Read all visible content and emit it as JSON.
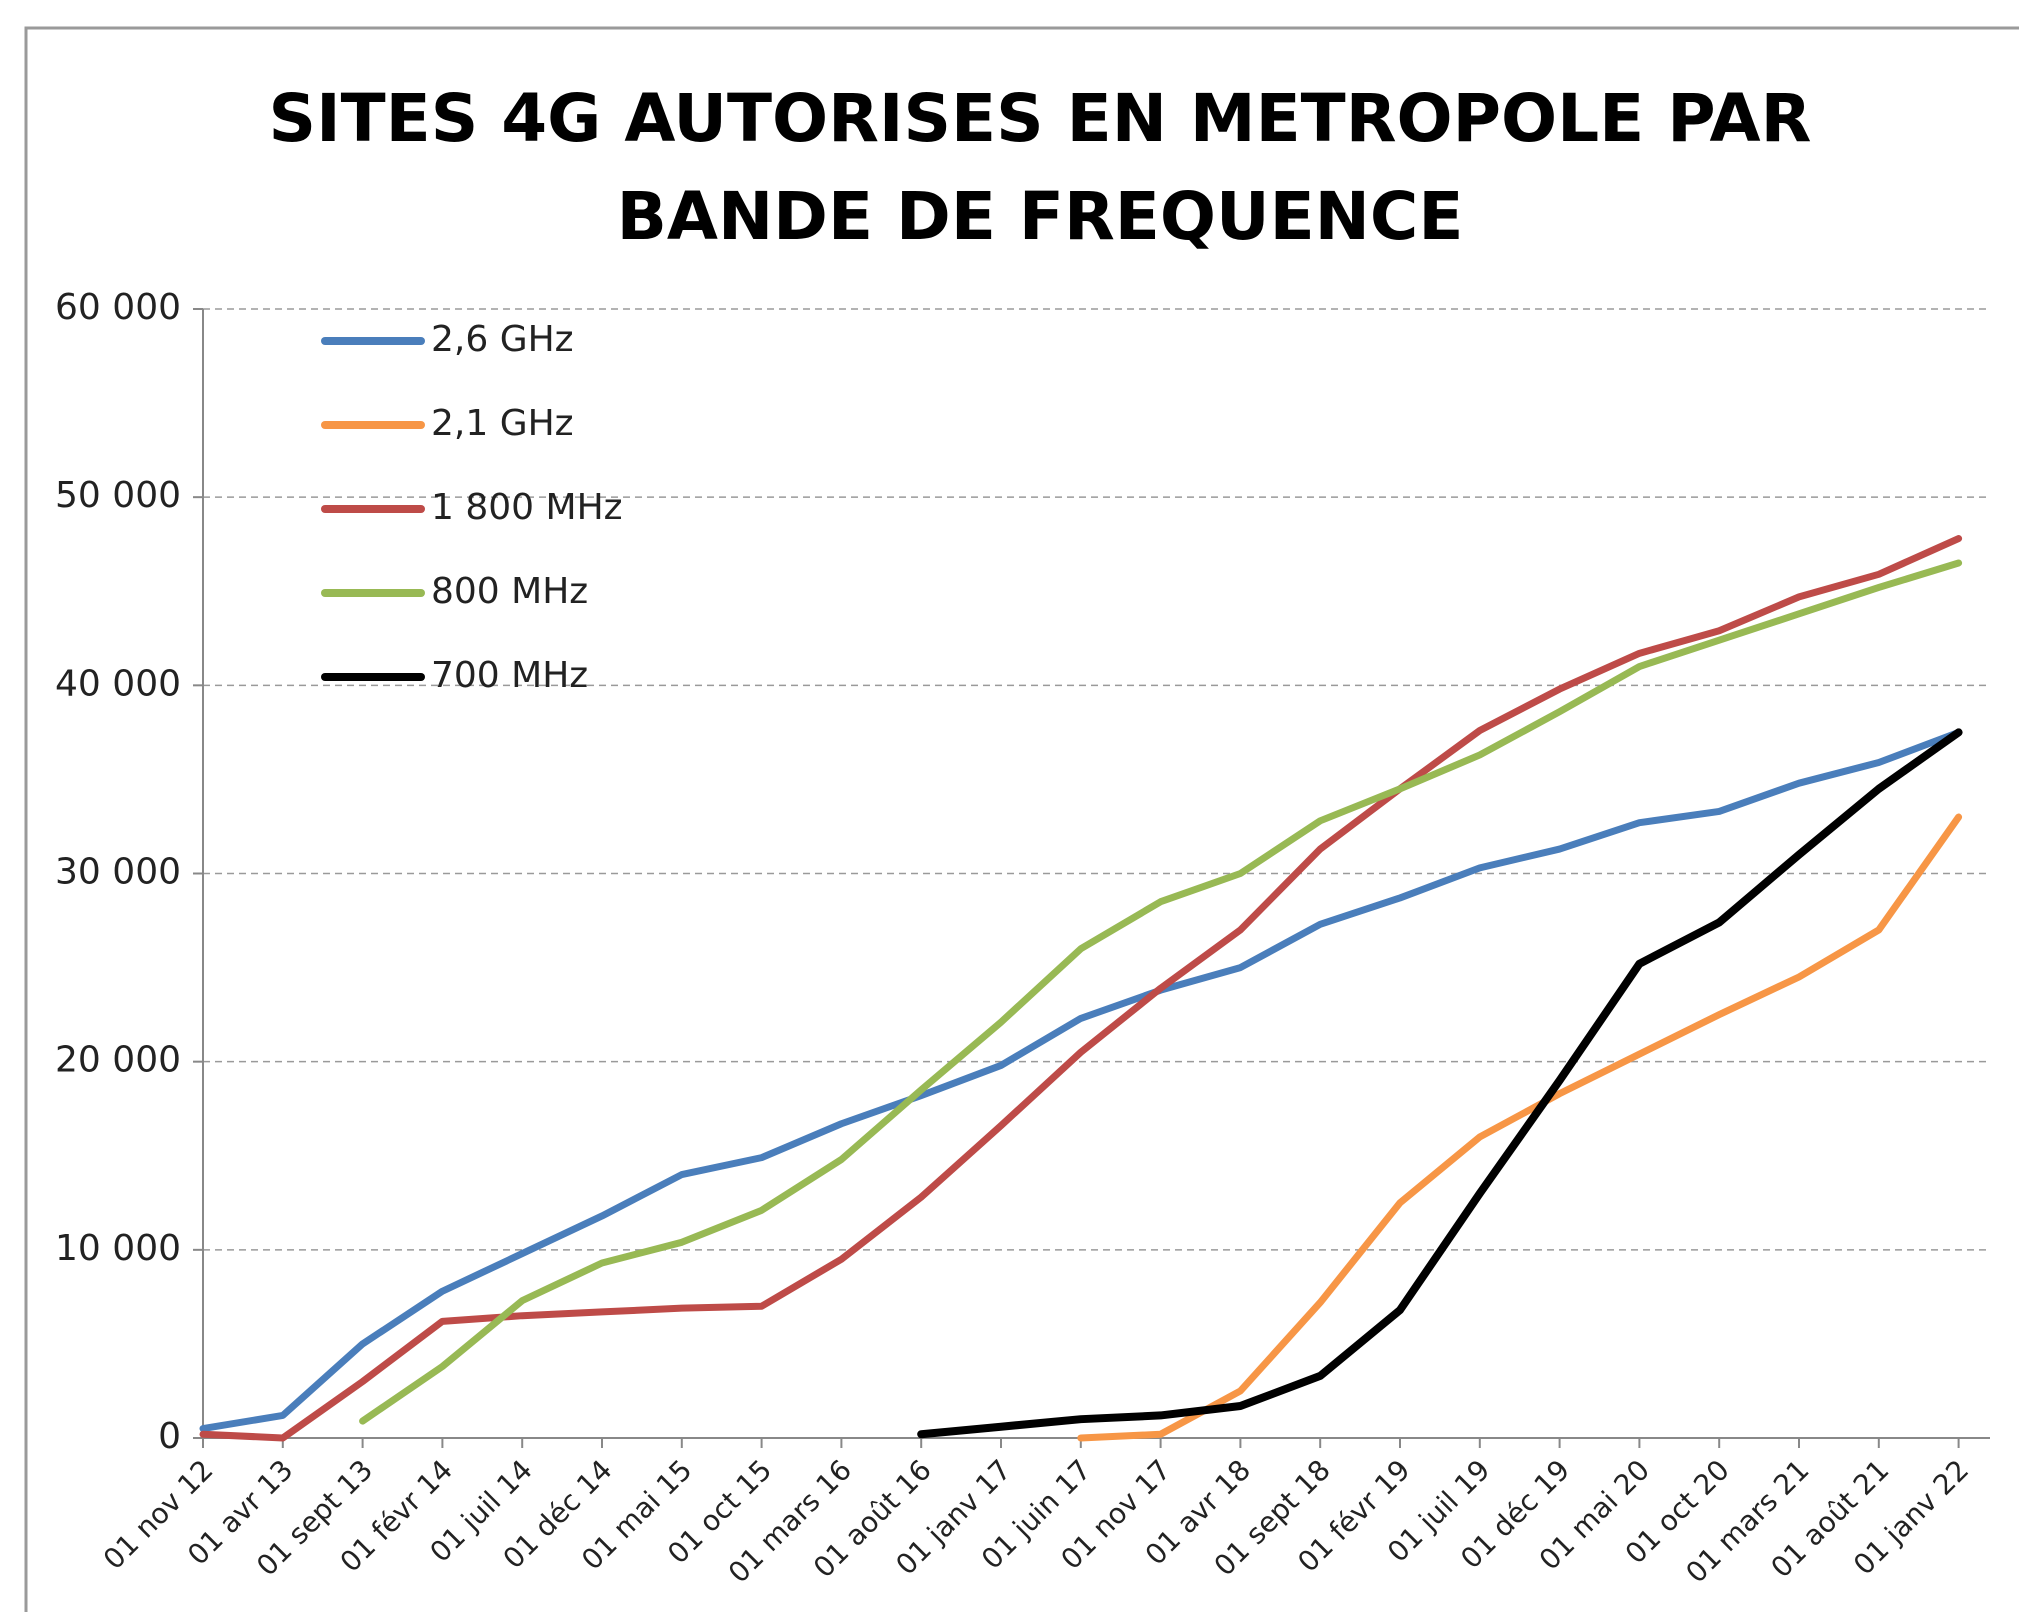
{
  "chart_data": {
    "type": "line",
    "title": "SITES 4G AUTORISES EN METROPOLE PAR BANDE DE FREQUENCE",
    "categories": [
      "01 nov 12",
      "01 avr 13",
      "01 sept 13",
      "01 févr 14",
      "01 juil 14",
      "01 déc 14",
      "01 mai 15",
      "01 oct 15",
      "01 mars 16",
      "01 août 16",
      "01 janv 17",
      "01 juin 17",
      "01 nov 17",
      "01 avr 18",
      "01 sept 18",
      "01 févr 19",
      "01 juil 19",
      "01 déc 19",
      "01 mai 20",
      "01 oct 20",
      "01 mars 21",
      "01 août 21",
      "01 janv 22"
    ],
    "series": [
      {
        "name": "2,6 GHz",
        "color": "#4a7ebb",
        "values": [
          500,
          1200,
          5000,
          7800,
          9800,
          11800,
          14000,
          14900,
          16700,
          18200,
          19800,
          22300,
          23800,
          25000,
          27300,
          28700,
          30300,
          31300,
          32700,
          33300,
          34800,
          35900,
          37500
        ]
      },
      {
        "name": "2,1 GHz",
        "color": "#f79646",
        "values": [
          null,
          null,
          null,
          null,
          null,
          null,
          null,
          null,
          null,
          null,
          null,
          0,
          200,
          2500,
          7200,
          12500,
          16000,
          18300,
          20400,
          22500,
          24500,
          27000,
          33000
        ]
      },
      {
        "name": "1 800 MHz",
        "color": "#be4b48",
        "values": [
          200,
          0,
          3000,
          6200,
          6500,
          6700,
          6900,
          7000,
          9500,
          12800,
          16600,
          20500,
          23900,
          27000,
          31300,
          34500,
          37600,
          39800,
          41700,
          42900,
          44700,
          45900,
          47800
        ]
      },
      {
        "name": "800 MHz",
        "color": "#98b954",
        "values": [
          null,
          null,
          900,
          3800,
          7300,
          9300,
          10400,
          12100,
          14800,
          18500,
          22100,
          26000,
          28500,
          30000,
          32800,
          34500,
          36300,
          38600,
          41000,
          42400,
          43800,
          45200,
          46500
        ]
      },
      {
        "name": "700 MHz",
        "color": "#000000",
        "values": [
          null,
          null,
          null,
          null,
          null,
          null,
          null,
          null,
          null,
          200,
          600,
          1000,
          1200,
          1700,
          3300,
          6800,
          13000,
          19000,
          25200,
          27400,
          31000,
          34500,
          37500
        ]
      }
    ],
    "ylim": [
      0,
      60000
    ],
    "yticks": [
      0,
      {
        "value": 10000,
        "label": "10 000"
      },
      {
        "value": 20000,
        "label": "20 000"
      },
      {
        "value": 30000,
        "label": "30 000"
      },
      {
        "value": 40000,
        "label": "40 000"
      },
      {
        "value": 50000,
        "label": "50 000"
      },
      {
        "value": 60000,
        "label": "60 000"
      }
    ],
    "grid": true,
    "legend": "top-left"
  }
}
